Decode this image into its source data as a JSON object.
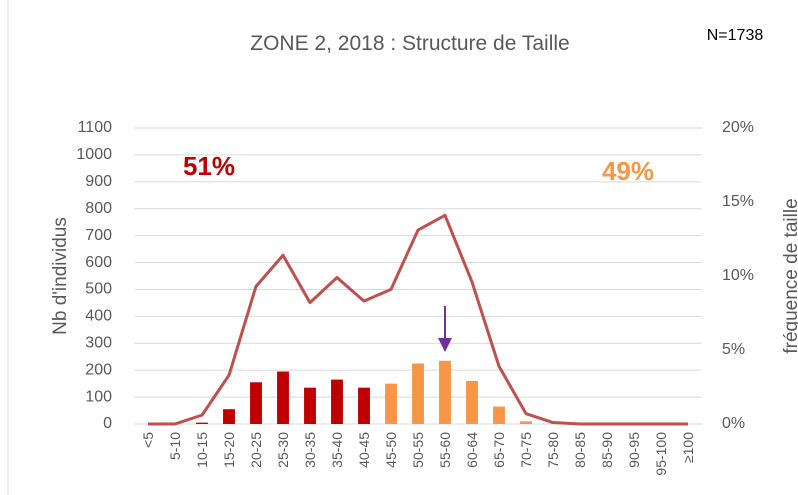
{
  "chart_data": {
    "type": "bar_line",
    "title": "ZONE 2, 2018 : Structure de Taille",
    "y_label": "Nb d'individus",
    "y2_label": "fréquence de taille",
    "annotations": [
      {
        "text": "51%",
        "color": "#c00000"
      },
      {
        "text": "49%",
        "color": "#f79646"
      },
      {
        "text": "N=1738",
        "color": "#000000"
      }
    ],
    "categories": [
      "<5",
      "5-10",
      "10-15",
      "15-20",
      "20-25",
      "25-30",
      "30-35",
      "35-40",
      "40-45",
      "45-50",
      "50-55",
      "55-60",
      "60-64",
      "65-70",
      "70-75",
      "75-80",
      "80-85",
      "85-90",
      "90-95",
      "95-100",
      "≥100"
    ],
    "series": [
      {
        "type": "bar",
        "values": [
          0,
          0,
          5,
          55,
          155,
          195,
          135,
          165,
          135,
          150,
          225,
          235,
          160,
          65,
          10,
          0,
          0,
          0,
          0,
          0,
          0
        ],
        "colors": [
          "#c00000",
          "#c00000",
          "#c00000",
          "#c00000",
          "#c00000",
          "#c00000",
          "#c00000",
          "#c00000",
          "#c00000",
          "#f79646",
          "#f79646",
          "#f79646",
          "#f79646",
          "#f79646",
          "#f79646",
          "#f79646",
          "#f79646",
          "#f79646",
          "#f79646",
          "#f79646",
          "#f79646"
        ]
      },
      {
        "type": "line",
        "axis": "y2",
        "color": "#c0504d",
        "values": [
          0,
          0,
          0.6,
          3.3,
          9.3,
          11.4,
          8.2,
          9.9,
          8.3,
          9.1,
          13.1,
          14.1,
          9.6,
          3.9,
          0.7,
          0.1,
          0,
          0,
          0,
          0,
          0
        ]
      }
    ],
    "ylim": [
      0,
      1100
    ],
    "yticks": [
      0,
      100,
      200,
      300,
      400,
      500,
      600,
      700,
      800,
      900,
      1000,
      1100
    ],
    "y2lim": [
      0,
      20
    ],
    "y2ticks": [
      {
        "value": 0,
        "label": "0%"
      },
      {
        "value": 5,
        "label": "5%"
      },
      {
        "value": 10,
        "label": "10%"
      },
      {
        "value": 15,
        "label": "15%"
      },
      {
        "value": 20,
        "label": "20%"
      }
    ],
    "grid": true
  }
}
